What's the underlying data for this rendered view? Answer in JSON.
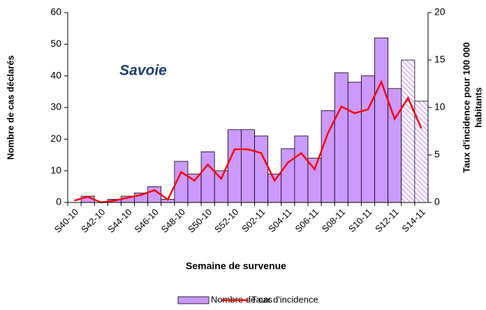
{
  "chart_data": {
    "type": "bar_line",
    "title": "Savoie",
    "xlabel": "Semaine de survenue",
    "ylabel": "Nombre de cas déclarés",
    "y2label": [
      "Taux d'incidence pour 100 000",
      "habitants"
    ],
    "categories": [
      "S40-10",
      null,
      "S42-10",
      null,
      "S44-10",
      null,
      "S46-10",
      null,
      "S48-10",
      null,
      "S50-10",
      null,
      "S52-10",
      null,
      "S02-11",
      null,
      "S04-11",
      null,
      "S06-11",
      null,
      "S08-11",
      null,
      "S10-11",
      null,
      "S12-11",
      null,
      "S14-11"
    ],
    "ylim": [
      0,
      60
    ],
    "yticks": [
      0,
      10,
      20,
      30,
      40,
      50,
      60
    ],
    "y2lim": [
      0,
      20
    ],
    "y2ticks": [
      0,
      5,
      10,
      15,
      20
    ],
    "series": [
      {
        "name": "Nombre de cas",
        "color": "#cc99ff",
        "type": "bar",
        "values": [
          0,
          2,
          0,
          1,
          2,
          3,
          5,
          1,
          13,
          9,
          16,
          10,
          23,
          23,
          21,
          9,
          17,
          21,
          14,
          29,
          41,
          38,
          40,
          52,
          36,
          45,
          32
        ],
        "hatched": [
          false,
          false,
          false,
          false,
          false,
          false,
          false,
          false,
          false,
          false,
          false,
          false,
          false,
          false,
          false,
          false,
          false,
          false,
          false,
          false,
          false,
          false,
          false,
          false,
          false,
          true,
          true
        ]
      },
      {
        "name": "Taux d'incidence",
        "color": "#ff0000",
        "type": "line",
        "axis": "y2",
        "values": [
          0.2,
          0.6,
          0,
          0.2,
          0.5,
          0.8,
          1.3,
          0.3,
          3.2,
          2.3,
          4,
          2.5,
          5.6,
          5.6,
          5.2,
          2.3,
          4.2,
          5.2,
          3.5,
          7.3,
          10.1,
          9.4,
          9.8,
          12.7,
          8.8,
          11,
          7.8
        ]
      }
    ],
    "legend": "bottom"
  }
}
